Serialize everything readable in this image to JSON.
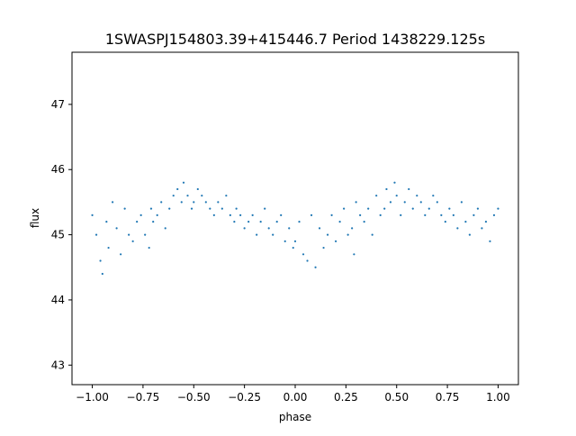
{
  "chart_data": {
    "type": "scatter",
    "title": "1SWASPJ154803.39+415446.7 Period 1438229.125s",
    "xlabel": "phase",
    "ylabel": "flux",
    "xlim": [
      -1.1,
      1.1
    ],
    "ylim": [
      42.7,
      47.8
    ],
    "xticks": [
      -1.0,
      -0.75,
      -0.5,
      -0.25,
      0.0,
      0.25,
      0.5,
      0.75,
      1.0
    ],
    "xtick_labels": [
      "−1.00",
      "−0.75",
      "−0.50",
      "−0.25",
      "0.00",
      "0.25",
      "0.50",
      "0.75",
      "1.00"
    ],
    "yticks": [
      43,
      44,
      45,
      46,
      47
    ],
    "ytick_labels": [
      "43",
      "44",
      "45",
      "46",
      "47"
    ],
    "grid": false,
    "marker_color": "#1f77b4",
    "series": [
      {
        "x": [
          -1.0,
          -0.98,
          -0.96,
          -0.95,
          -0.93,
          -0.92,
          -0.9,
          -0.88,
          -0.86,
          -0.84,
          -0.82,
          -0.8,
          -0.78,
          -0.76,
          -0.74,
          -0.72,
          -0.71,
          -0.7,
          -0.68,
          -0.66,
          -0.64,
          -0.62,
          -0.6,
          -0.58,
          -0.56,
          -0.55,
          -0.53,
          -0.51,
          -0.5,
          -0.48,
          -0.46,
          -0.44,
          -0.42,
          -0.4,
          -0.38,
          -0.36,
          -0.34,
          -0.32,
          -0.3,
          -0.29,
          -0.27,
          -0.25,
          -0.23,
          -0.21,
          -0.19,
          -0.17,
          -0.15,
          -0.13,
          -0.11,
          -0.09,
          -0.07,
          -0.05,
          -0.03,
          -0.01,
          0.0,
          0.02,
          0.04,
          0.06,
          0.08,
          0.1,
          0.12,
          0.14,
          0.16,
          0.18,
          0.2,
          0.22,
          0.24,
          0.26,
          0.28,
          0.29,
          0.3,
          0.32,
          0.34,
          0.36,
          0.38,
          0.4,
          0.42,
          0.44,
          0.45,
          0.47,
          0.49,
          0.5,
          0.52,
          0.54,
          0.56,
          0.58,
          0.6,
          0.62,
          0.64,
          0.66,
          0.68,
          0.7,
          0.72,
          0.74,
          0.76,
          0.78,
          0.8,
          0.82,
          0.84,
          0.86,
          0.88,
          0.9,
          0.92,
          0.94,
          0.96,
          0.98,
          1.0
        ],
        "y": [
          45.3,
          45.0,
          44.6,
          44.4,
          45.2,
          44.8,
          45.5,
          45.1,
          44.7,
          45.4,
          45.0,
          44.9,
          45.2,
          45.3,
          45.0,
          44.8,
          45.4,
          45.2,
          45.3,
          45.5,
          45.1,
          45.4,
          45.6,
          45.7,
          45.5,
          45.8,
          45.6,
          45.4,
          45.5,
          45.7,
          45.6,
          45.5,
          45.4,
          45.3,
          45.5,
          45.4,
          45.6,
          45.3,
          45.2,
          45.4,
          45.3,
          45.1,
          45.2,
          45.3,
          45.0,
          45.2,
          45.4,
          45.1,
          45.0,
          45.2,
          45.3,
          44.9,
          45.1,
          44.8,
          44.9,
          45.2,
          44.7,
          44.6,
          45.3,
          44.5,
          45.1,
          44.8,
          45.0,
          45.3,
          44.9,
          45.2,
          45.4,
          45.0,
          45.1,
          44.7,
          45.5,
          45.3,
          45.2,
          45.4,
          45.0,
          45.6,
          45.3,
          45.4,
          45.7,
          45.5,
          45.8,
          45.6,
          45.3,
          45.5,
          45.7,
          45.4,
          45.6,
          45.5,
          45.3,
          45.4,
          45.6,
          45.5,
          45.3,
          45.2,
          45.4,
          45.3,
          45.1,
          45.5,
          45.2,
          45.0,
          45.3,
          45.4,
          45.1,
          45.2,
          44.9,
          45.3,
          45.4
        ]
      }
    ]
  }
}
